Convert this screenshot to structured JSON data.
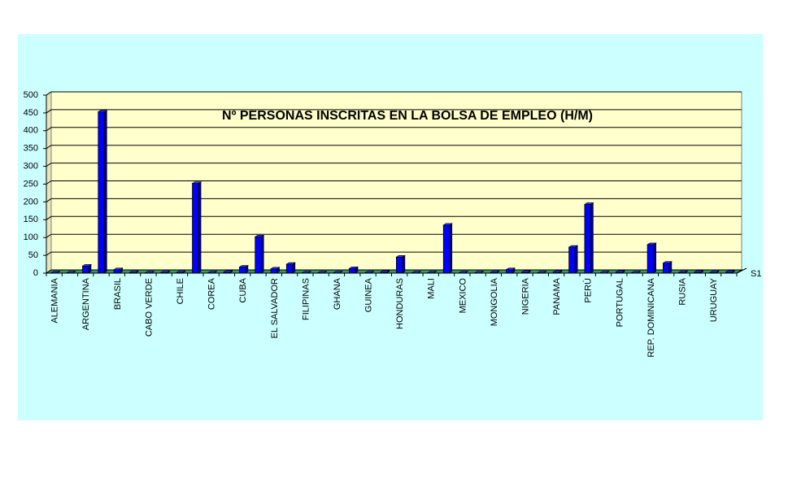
{
  "colors": {
    "page": "#ffffff",
    "chart_area": "#ccffff",
    "plot_wall": "#ffffcc",
    "floor": "#339966",
    "bar": "#0000ff",
    "bar_side": "#000080",
    "gridline": "#000000"
  },
  "chart_data": {
    "type": "bar",
    "title": "Nº PERSONAS INSCRITAS EN LA BOLSA DE EMPLEO (H/M)",
    "xlabel": "",
    "ylabel": "",
    "ylim": [
      0,
      500
    ],
    "yticks": [
      "0",
      "50",
      "100",
      "150",
      "200",
      "250",
      "300",
      "350",
      "400",
      "450",
      "500"
    ],
    "grid": true,
    "legend_position": "right",
    "categories": [
      "ALEMANIA",
      "",
      "ARGENTINA",
      "",
      "BRASIL",
      "",
      "CABO VERDE",
      "",
      "CHILE",
      "",
      "COREA",
      "",
      "CUBA",
      "",
      "EL SALVADOR",
      "",
      "FILIPINAS",
      "",
      "GHANA",
      "",
      "GUINEA",
      "",
      "HONDURAS",
      "",
      "MALI",
      "",
      "MEXICO",
      "",
      "MONGOLIA",
      "",
      "NIGERIA",
      "",
      "PANAMA",
      "",
      "PERÚ",
      "",
      "PORTUGAL",
      "",
      "REP. DOMINICANA",
      "",
      "RUSIA",
      "",
      "URUGUAY",
      ""
    ],
    "series": [
      {
        "name": "S1",
        "values": [
          1,
          1,
          20,
          453,
          10,
          2,
          1,
          2,
          2,
          252,
          1,
          3,
          17,
          102,
          12,
          25,
          1,
          1,
          1,
          13,
          1,
          3,
          45,
          1,
          1,
          135,
          1,
          1,
          2,
          10,
          3,
          1,
          3,
          73,
          193,
          1,
          3,
          1,
          80,
          28,
          2,
          3,
          2,
          3
        ]
      }
    ]
  }
}
